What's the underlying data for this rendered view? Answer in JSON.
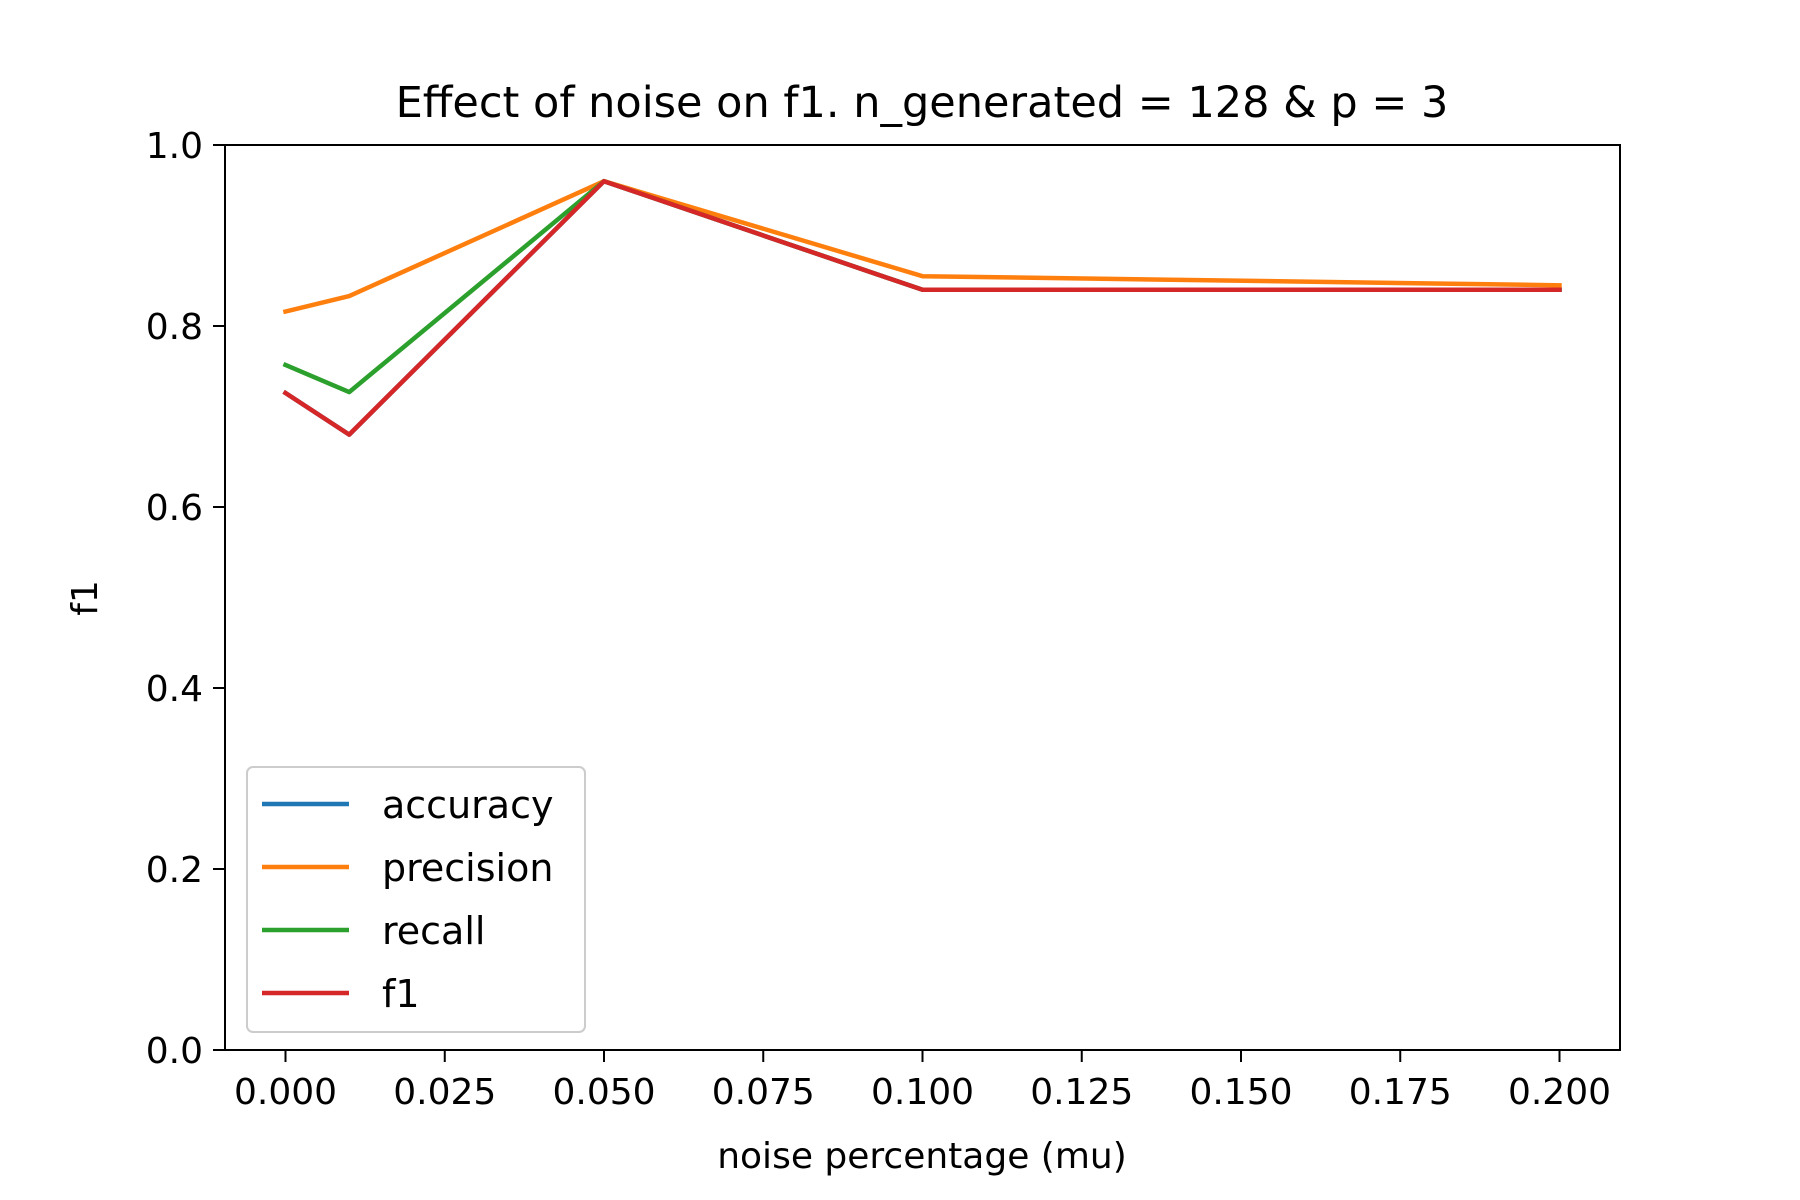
{
  "chart_data": {
    "type": "line",
    "title": "Effect of noise on f1. n_generated = 128 & p = 3",
    "xlabel": "noise percentage (mu)",
    "ylabel": "f1",
    "xlim": [
      -0.0095,
      0.2095
    ],
    "ylim": [
      0.0,
      1.0
    ],
    "x_ticks": [
      0.0,
      0.025,
      0.05,
      0.075,
      0.1,
      0.125,
      0.15,
      0.175,
      0.2
    ],
    "x_tick_labels": [
      "0.000",
      "0.025",
      "0.050",
      "0.075",
      "0.100",
      "0.125",
      "0.150",
      "0.175",
      "0.200"
    ],
    "y_ticks": [
      0.0,
      0.2,
      0.4,
      0.6,
      0.8,
      1.0
    ],
    "y_tick_labels": [
      "0.0",
      "0.2",
      "0.4",
      "0.6",
      "0.8",
      "1.0"
    ],
    "grid": false,
    "legend_position": "lower-left",
    "x": [
      0.0,
      0.01,
      0.05,
      0.1,
      0.2
    ],
    "series": [
      {
        "name": "accuracy",
        "color": "#1f77b4",
        "values": [
          0.726,
          0.68,
          0.96,
          0.84,
          0.84
        ]
      },
      {
        "name": "precision",
        "color": "#ff7f0e",
        "values": [
          0.816,
          0.833,
          0.96,
          0.855,
          0.845
        ]
      },
      {
        "name": "recall",
        "color": "#2ca02c",
        "values": [
          0.757,
          0.727,
          0.96,
          0.84,
          0.84
        ]
      },
      {
        "name": "f1",
        "color": "#d62728",
        "values": [
          0.726,
          0.68,
          0.96,
          0.84,
          0.84
        ]
      }
    ]
  }
}
